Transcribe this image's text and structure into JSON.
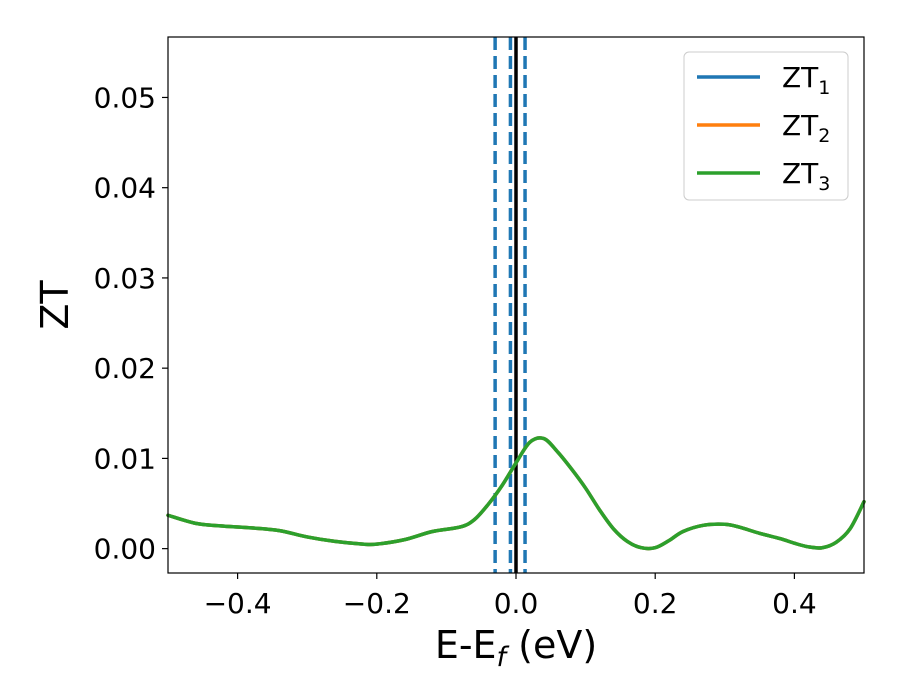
{
  "chart_data": {
    "type": "line",
    "title": "",
    "xlabel_main": "E-E",
    "xlabel_sub": "f",
    "xlabel_unit": " (eV)",
    "ylabel": "ZT",
    "xlim": [
      -0.5,
      0.5
    ],
    "ylim": [
      -0.0027,
      0.0567
    ],
    "xticks": [
      -0.4,
      -0.2,
      0.0,
      0.2,
      0.4
    ],
    "xtick_labels": [
      "−0.4",
      "−0.2",
      "0.0",
      "0.2",
      "0.4"
    ],
    "yticks": [
      0.0,
      0.01,
      0.02,
      0.03,
      0.04,
      0.05
    ],
    "ytick_labels": [
      "0.00",
      "0.01",
      "0.02",
      "0.03",
      "0.04",
      "0.05"
    ],
    "grid": false,
    "legend_position": "top-right",
    "series": [
      {
        "name": "ZT",
        "name_sub": "1",
        "color": "#1f77b4",
        "x": [
          -0.5,
          -0.46,
          -0.42,
          -0.38,
          -0.34,
          -0.3,
          -0.26,
          -0.22,
          -0.2,
          -0.16,
          -0.12,
          -0.08,
          -0.06,
          -0.04,
          -0.02,
          0.0,
          0.02,
          0.04,
          0.06,
          0.08,
          0.1,
          0.12,
          0.14,
          0.16,
          0.18,
          0.2,
          0.22,
          0.24,
          0.27,
          0.3,
          0.32,
          0.35,
          0.38,
          0.4,
          0.42,
          0.44,
          0.46,
          0.48,
          0.5
        ],
        "y": [
          0.0037,
          0.0028,
          0.0025,
          0.0023,
          0.002,
          0.0013,
          0.0008,
          0.0005,
          0.0005,
          0.001,
          0.0019,
          0.0024,
          0.0032,
          0.0049,
          0.007,
          0.0095,
          0.0118,
          0.0122,
          0.0107,
          0.0088,
          0.0067,
          0.0043,
          0.0022,
          0.0008,
          0.0001,
          0.0001,
          0.0009,
          0.0019,
          0.0026,
          0.0027,
          0.0024,
          0.0017,
          0.0011,
          0.0006,
          0.0002,
          0.0001,
          0.0007,
          0.0022,
          0.0052
        ]
      },
      {
        "name": "ZT",
        "name_sub": "2",
        "color": "#ff7f0e",
        "x": [
          -0.5,
          -0.46,
          -0.42,
          -0.38,
          -0.34,
          -0.3,
          -0.26,
          -0.22,
          -0.2,
          -0.16,
          -0.12,
          -0.08,
          -0.06,
          -0.04,
          -0.02,
          0.0,
          0.02,
          0.04,
          0.06,
          0.08,
          0.1,
          0.12,
          0.14,
          0.16,
          0.18,
          0.2,
          0.22,
          0.24,
          0.27,
          0.3,
          0.32,
          0.35,
          0.38,
          0.4,
          0.42,
          0.44,
          0.46,
          0.48,
          0.5
        ],
        "y": [
          0.0037,
          0.0028,
          0.0025,
          0.0023,
          0.002,
          0.0013,
          0.0008,
          0.0005,
          0.0005,
          0.001,
          0.0019,
          0.0024,
          0.0032,
          0.0049,
          0.007,
          0.0095,
          0.0118,
          0.0122,
          0.0107,
          0.0088,
          0.0067,
          0.0043,
          0.0022,
          0.0008,
          0.0001,
          0.0001,
          0.0009,
          0.0019,
          0.0026,
          0.0027,
          0.0024,
          0.0017,
          0.0011,
          0.0006,
          0.0002,
          0.0001,
          0.0007,
          0.0022,
          0.0052
        ]
      },
      {
        "name": "ZT",
        "name_sub": "3",
        "color": "#2ca02c",
        "x": [
          -0.5,
          -0.46,
          -0.42,
          -0.38,
          -0.34,
          -0.3,
          -0.26,
          -0.22,
          -0.2,
          -0.16,
          -0.12,
          -0.08,
          -0.06,
          -0.04,
          -0.02,
          0.0,
          0.02,
          0.04,
          0.06,
          0.08,
          0.1,
          0.12,
          0.14,
          0.16,
          0.18,
          0.2,
          0.22,
          0.24,
          0.27,
          0.3,
          0.32,
          0.35,
          0.38,
          0.4,
          0.42,
          0.44,
          0.46,
          0.48,
          0.5
        ],
        "y": [
          0.0037,
          0.0028,
          0.0025,
          0.0023,
          0.002,
          0.0013,
          0.0008,
          0.0005,
          0.0005,
          0.001,
          0.0019,
          0.0024,
          0.0032,
          0.0049,
          0.007,
          0.0095,
          0.0118,
          0.0122,
          0.0107,
          0.0088,
          0.0067,
          0.0043,
          0.0022,
          0.0008,
          0.0001,
          0.0001,
          0.0009,
          0.0019,
          0.0026,
          0.0027,
          0.0024,
          0.0017,
          0.0011,
          0.0006,
          0.0002,
          0.0001,
          0.0007,
          0.0022,
          0.0052
        ]
      }
    ],
    "vlines": [
      {
        "x": -0.03,
        "style": "dashed",
        "color": "#1f77b4"
      },
      {
        "x": -0.008,
        "style": "dashed",
        "color": "#1f77b4"
      },
      {
        "x": 0.013,
        "style": "dashed",
        "color": "#1f77b4"
      },
      {
        "x": 0.0,
        "style": "solid",
        "color": "#000000"
      }
    ]
  }
}
